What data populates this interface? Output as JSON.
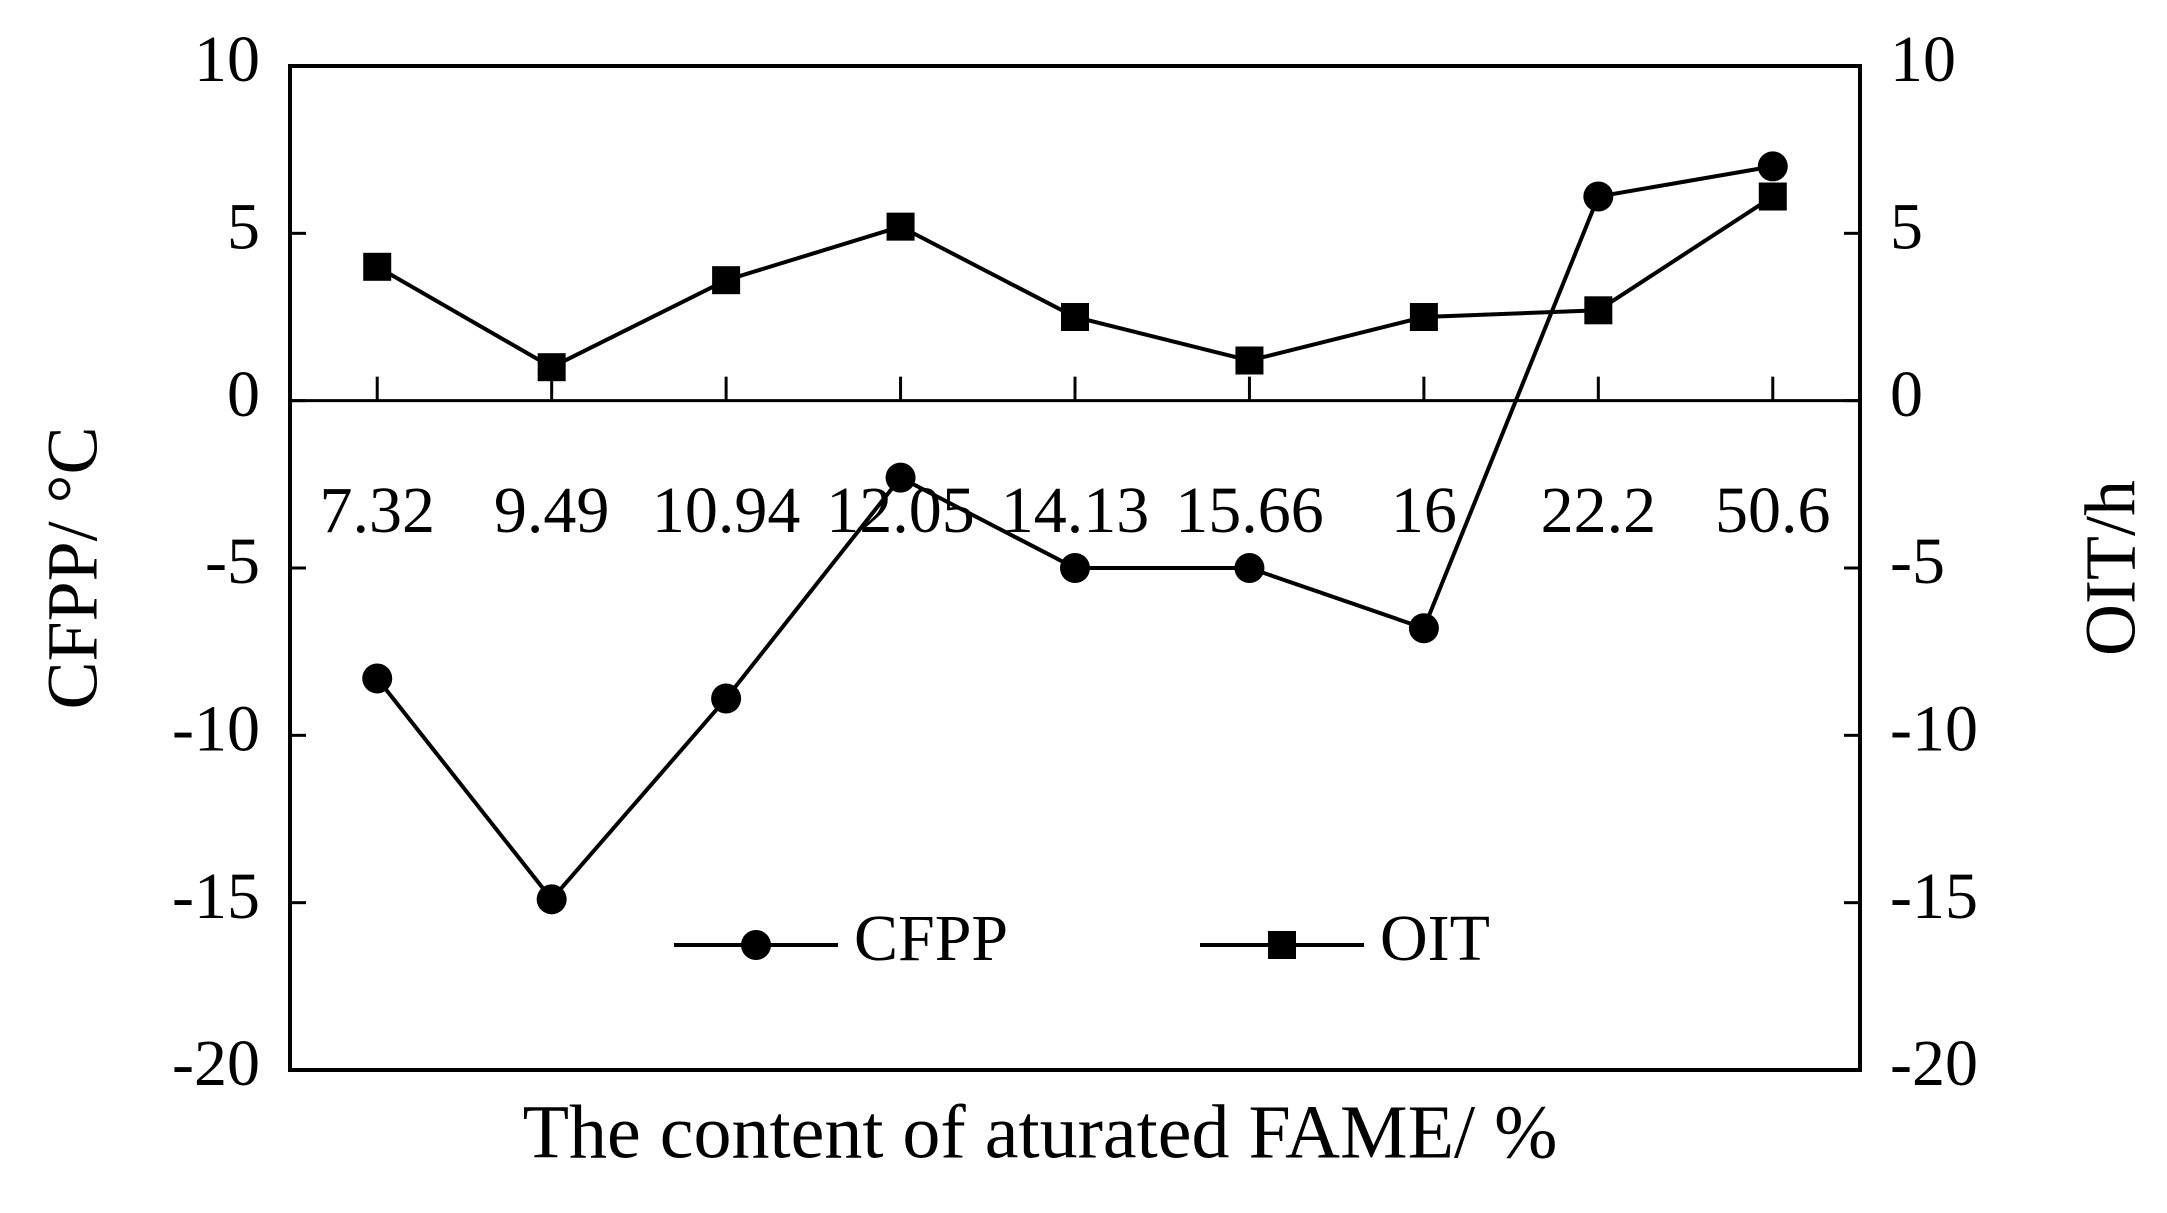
{
  "chart_data": {
    "type": "line",
    "x_label": "The content of aturated FAME/ %",
    "y_label": "CFPP/ °C",
    "y2_label": "OIT/h",
    "categories": [
      "7.32",
      "9.49",
      "10.94",
      "12.05",
      "14.13",
      "15.66",
      "16",
      "22.2",
      "50.6"
    ],
    "series": [
      {
        "name": "CFPP",
        "color": "#000000",
        "marker": "circle",
        "values": [
          -8.3,
          -14.9,
          -8.9,
          -2.3,
          -5,
          -5,
          -6.8,
          6.1,
          7.0
        ]
      },
      {
        "name": "OIT",
        "color": "#000000",
        "marker": "square",
        "axis": "y2",
        "values": [
          4.0,
          1.0,
          3.6,
          5.2,
          2.5,
          1.2,
          2.5,
          2.7,
          6.1
        ]
      }
    ],
    "ylim": [
      -20,
      10
    ],
    "yticks": [
      -20,
      -15,
      -10,
      -5,
      0,
      5,
      10
    ],
    "y2lim": [
      -20,
      10
    ],
    "y2ticks": [
      -20,
      -15,
      -10,
      -5,
      0,
      5,
      10
    ],
    "grid": false
  }
}
